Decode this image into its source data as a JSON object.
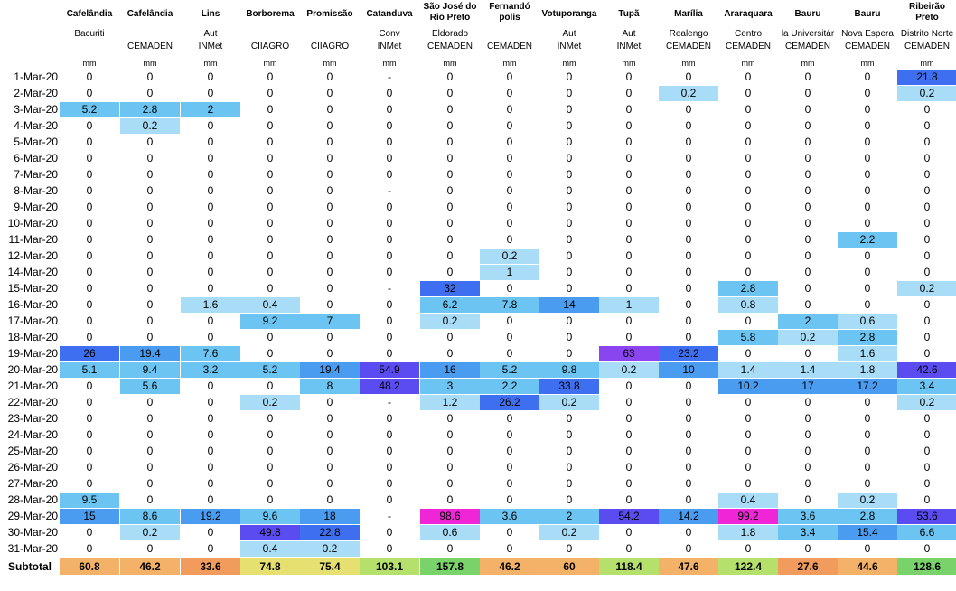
{
  "header": {
    "columns": [
      {
        "station": "Cafelândia",
        "sub": "Bacuriti",
        "source": "",
        "unit": "mm"
      },
      {
        "station": "Cafelândia",
        "sub": "",
        "source": "CEMADEN",
        "unit": "mm"
      },
      {
        "station": "Lins",
        "sub": "Aut",
        "source": "INMet",
        "unit": "mm"
      },
      {
        "station": "Borborema",
        "sub": "",
        "source": "CIIAGRO",
        "unit": "mm"
      },
      {
        "station": "Promissão",
        "sub": "",
        "source": "CIIAGRO",
        "unit": "mm"
      },
      {
        "station": "Catanduva",
        "sub": "Conv",
        "source": "INMet",
        "unit": "mm"
      },
      {
        "station": "São José do Rio Preto",
        "sub": "Eldorado",
        "source": "CEMADEN",
        "unit": "mm"
      },
      {
        "station": "Fernandó polis",
        "sub": "",
        "source": "CEMADEN",
        "unit": "mm"
      },
      {
        "station": "Votuporanga",
        "sub": "Aut",
        "source": "INMet",
        "unit": "mm"
      },
      {
        "station": "Tupã",
        "sub": "Aut",
        "source": "INMet",
        "unit": "mm"
      },
      {
        "station": "Marília",
        "sub": "Realengo",
        "source": "CEMADEN",
        "unit": "mm"
      },
      {
        "station": "Araraquara",
        "sub": "Centro",
        "source": "CEMADEN",
        "unit": "mm"
      },
      {
        "station": "Bauru",
        "sub": "la Universitár",
        "source": "CEMADEN",
        "unit": "mm"
      },
      {
        "station": "Bauru",
        "sub": "Nova Espera",
        "source": "CEMADEN",
        "unit": "mm"
      },
      {
        "station": "Ribeirão Preto",
        "sub": "Distrito Norte",
        "source": "CEMADEN",
        "unit": "mm"
      }
    ]
  },
  "rows": [
    {
      "date": "1-Mar-20",
      "values": [
        "0",
        "0",
        "0",
        "0",
        "0",
        "-",
        "0",
        "0",
        "0",
        "0",
        "0",
        "0",
        "0",
        "0",
        "21.8"
      ]
    },
    {
      "date": "2-Mar-20",
      "values": [
        "0",
        "0",
        "0",
        "0",
        "0",
        "0",
        "0",
        "0",
        "0",
        "0",
        "0.2",
        "0",
        "0",
        "0",
        "0.2"
      ]
    },
    {
      "date": "3-Mar-20",
      "values": [
        "5.2",
        "2.8",
        "2",
        "0",
        "0",
        "0",
        "0",
        "0",
        "0",
        "0",
        "0",
        "0",
        "0",
        "0",
        "0"
      ]
    },
    {
      "date": "4-Mar-20",
      "values": [
        "0",
        "0.2",
        "0",
        "0",
        "0",
        "0",
        "0",
        "0",
        "0",
        "0",
        "0",
        "0",
        "0",
        "0",
        "0"
      ]
    },
    {
      "date": "5-Mar-20",
      "values": [
        "0",
        "0",
        "0",
        "0",
        "0",
        "0",
        "0",
        "0",
        "0",
        "0",
        "0",
        "0",
        "0",
        "0",
        "0"
      ]
    },
    {
      "date": "6-Mar-20",
      "values": [
        "0",
        "0",
        "0",
        "0",
        "0",
        "0",
        "0",
        "0",
        "0",
        "0",
        "0",
        "0",
        "0",
        "0",
        "0"
      ]
    },
    {
      "date": "7-Mar-20",
      "values": [
        "0",
        "0",
        "0",
        "0",
        "0",
        "0",
        "0",
        "0",
        "0",
        "0",
        "0",
        "0",
        "0",
        "0",
        "0"
      ]
    },
    {
      "date": "8-Mar-20",
      "values": [
        "0",
        "0",
        "0",
        "0",
        "0",
        "-",
        "0",
        "0",
        "0",
        "0",
        "0",
        "0",
        "0",
        "0",
        "0"
      ]
    },
    {
      "date": "9-Mar-20",
      "values": [
        "0",
        "0",
        "0",
        "0",
        "0",
        "0",
        "0",
        "0",
        "0",
        "0",
        "0",
        "0",
        "0",
        "0",
        "0"
      ]
    },
    {
      "date": "10-Mar-20",
      "values": [
        "0",
        "0",
        "0",
        "0",
        "0",
        "0",
        "0",
        "0",
        "0",
        "0",
        "0",
        "0",
        "0",
        "0",
        "0"
      ]
    },
    {
      "date": "11-Mar-20",
      "values": [
        "0",
        "0",
        "0",
        "0",
        "0",
        "0",
        "0",
        "0",
        "0",
        "0",
        "0",
        "0",
        "0",
        "2.2",
        "0"
      ]
    },
    {
      "date": "12-Mar-20",
      "values": [
        "0",
        "0",
        "0",
        "0",
        "0",
        "0",
        "0",
        "0.2",
        "0",
        "0",
        "0",
        "0",
        "0",
        "0",
        "0"
      ]
    },
    {
      "date": "14-Mar-20",
      "values": [
        "0",
        "0",
        "0",
        "0",
        "0",
        "0",
        "0",
        "1",
        "0",
        "0",
        "0",
        "0",
        "0",
        "0",
        "0"
      ]
    },
    {
      "date": "15-Mar-20",
      "values": [
        "0",
        "0",
        "0",
        "0",
        "0",
        "-",
        "32",
        "0",
        "0",
        "0",
        "0",
        "2.8",
        "0",
        "0",
        "0.2"
      ]
    },
    {
      "date": "16-Mar-20",
      "values": [
        "0",
        "0",
        "1.6",
        "0.4",
        "0",
        "0",
        "6.2",
        "7.8",
        "14",
        "1",
        "0",
        "0.8",
        "0",
        "0",
        "0"
      ]
    },
    {
      "date": "17-Mar-20",
      "values": [
        "0",
        "0",
        "0",
        "9.2",
        "7",
        "0",
        "0.2",
        "0",
        "0",
        "0",
        "0",
        "0",
        "2",
        "0.6",
        "0"
      ]
    },
    {
      "date": "18-Mar-20",
      "values": [
        "0",
        "0",
        "0",
        "0",
        "0",
        "0",
        "0",
        "0",
        "0",
        "0",
        "0",
        "5.8",
        "0.2",
        "2.8",
        "0"
      ]
    },
    {
      "date": "19-Mar-20",
      "values": [
        "26",
        "19.4",
        "7.6",
        "0",
        "0",
        "0",
        "0",
        "0",
        "0",
        "63",
        "23.2",
        "0",
        "0",
        "1.6",
        "0"
      ]
    },
    {
      "date": "20-Mar-20",
      "values": [
        "5.1",
        "9.4",
        "3.2",
        "5.2",
        "19.4",
        "54.9",
        "16",
        "5.2",
        "9.8",
        "0.2",
        "10",
        "1.4",
        "1.4",
        "1.8",
        "42.6"
      ]
    },
    {
      "date": "21-Mar-20",
      "values": [
        "0",
        "5.6",
        "0",
        "0",
        "8",
        "48.2",
        "3",
        "2.2",
        "33.8",
        "0",
        "0",
        "10.2",
        "17",
        "17.2",
        "3.4"
      ]
    },
    {
      "date": "22-Mar-20",
      "values": [
        "0",
        "0",
        "0",
        "0.2",
        "0",
        "-",
        "1.2",
        "26.2",
        "0.2",
        "0",
        "0",
        "0",
        "0",
        "0",
        "0.2"
      ]
    },
    {
      "date": "23-Mar-20",
      "values": [
        "0",
        "0",
        "0",
        "0",
        "0",
        "0",
        "0",
        "0",
        "0",
        "0",
        "0",
        "0",
        "0",
        "0",
        "0"
      ]
    },
    {
      "date": "24-Mar-20",
      "values": [
        "0",
        "0",
        "0",
        "0",
        "0",
        "0",
        "0",
        "0",
        "0",
        "0",
        "0",
        "0",
        "0",
        "0",
        "0"
      ]
    },
    {
      "date": "25-Mar-20",
      "values": [
        "0",
        "0",
        "0",
        "0",
        "0",
        "0",
        "0",
        "0",
        "0",
        "0",
        "0",
        "0",
        "0",
        "0",
        "0"
      ]
    },
    {
      "date": "26-Mar-20",
      "values": [
        "0",
        "0",
        "0",
        "0",
        "0",
        "0",
        "0",
        "0",
        "0",
        "0",
        "0",
        "0",
        "0",
        "0",
        "0"
      ]
    },
    {
      "date": "27-Mar-20",
      "values": [
        "0",
        "0",
        "0",
        "0",
        "0",
        "0",
        "0",
        "0",
        "0",
        "0",
        "0",
        "0",
        "0",
        "0",
        "0"
      ]
    },
    {
      "date": "28-Mar-20",
      "values": [
        "9.5",
        "0",
        "0",
        "0",
        "0",
        "0",
        "0",
        "0",
        "0",
        "0",
        "0",
        "0.4",
        "0",
        "0.2",
        "0"
      ]
    },
    {
      "date": "29-Mar-20",
      "values": [
        "15",
        "8.6",
        "19.2",
        "9.6",
        "18",
        "-",
        "98.6",
        "3.6",
        "2",
        "54.2",
        "14.2",
        "99.2",
        "3.6",
        "2.8",
        "53.6"
      ]
    },
    {
      "date": "30-Mar-20",
      "values": [
        "0",
        "0.2",
        "0",
        "49.8",
        "22.8",
        "0",
        "0.6",
        "0",
        "0.2",
        "0",
        "0",
        "1.8",
        "3.4",
        "15.4",
        "6.6"
      ]
    },
    {
      "date": "31-Mar-20",
      "values": [
        "0",
        "0",
        "0",
        "0.4",
        "0.2",
        "0",
        "0",
        "0",
        "0",
        "0",
        "0",
        "0",
        "0",
        "0",
        "0"
      ]
    }
  ],
  "subtotal": {
    "label": "Subtotal",
    "values": [
      "60.8",
      "46.2",
      "33.6",
      "74.8",
      "75.4",
      "103.1",
      "157.8",
      "46.2",
      "60",
      "118.4",
      "47.6",
      "122.4",
      "27.6",
      "44.6",
      "128.6"
    ]
  },
  "colors": {
    "very_light_blue": "#a9dcf6",
    "light_blue": "#8fd1f4",
    "sky_blue": "#6cc4f2",
    "blue": "#4a9cf0",
    "royal_blue": "#3d6ff0",
    "indigo": "#5a4cf0",
    "violet": "#8a44f0",
    "magenta": "#f025d8",
    "subtotal_green": "#7ad36a",
    "subtotal_lightgreen": "#b6e06c",
    "subtotal_yellow": "#e6e070",
    "subtotal_orange": "#f4b268",
    "subtotal_deeporange": "#f19c5c"
  }
}
